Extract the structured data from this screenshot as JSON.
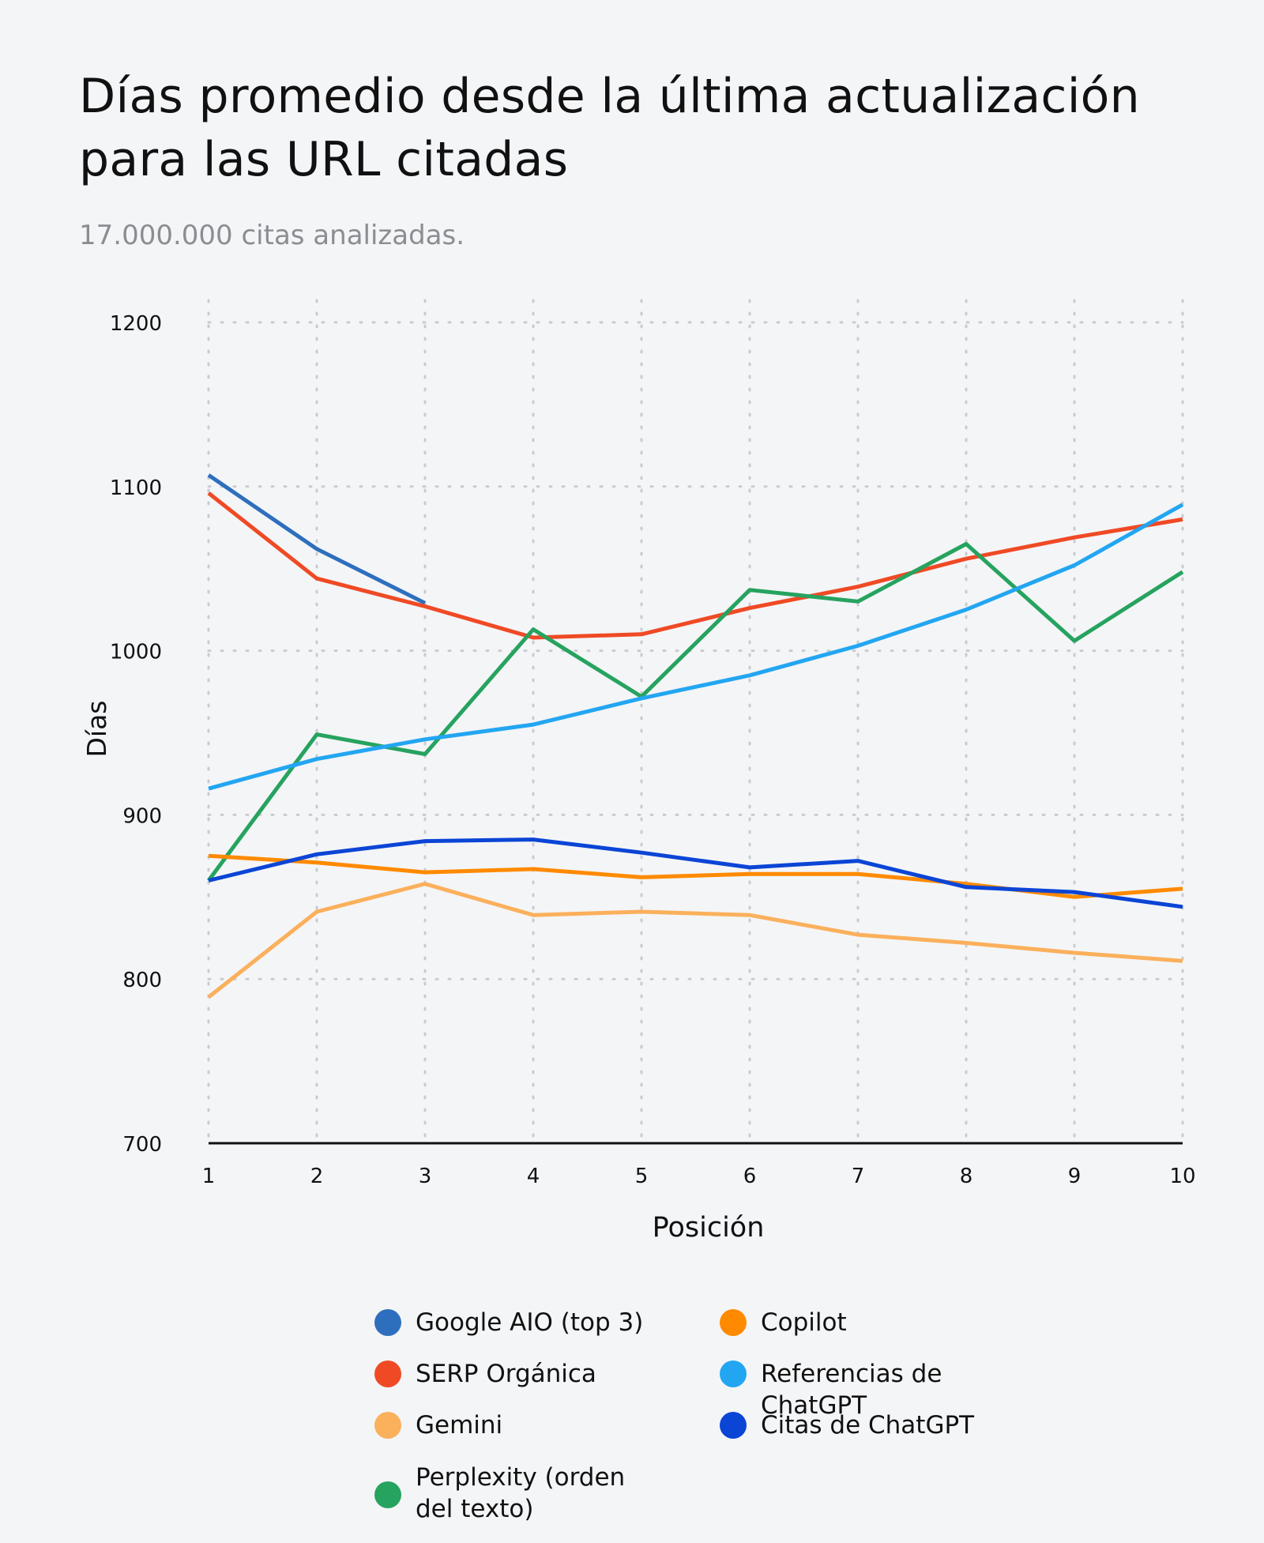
{
  "title": "Días promedio desde la última actualización para las URL citadas",
  "subtitle": "17.000.000 citas analizadas.",
  "chart_data": {
    "type": "line",
    "title": "Días promedio desde la última actualización para las URL citadas",
    "subtitle": "17.000.000 citas analizadas.",
    "xlabel": "Posición",
    "ylabel": "Días",
    "x": [
      1,
      2,
      3,
      4,
      5,
      6,
      7,
      8,
      9,
      10
    ],
    "ylim": [
      700,
      1200
    ],
    "yticks": [
      700,
      800,
      900,
      1000,
      1100,
      1200
    ],
    "grid": true,
    "legend_position": "bottom",
    "series": [
      {
        "name": "Google AIO (top 3)",
        "color": "#2e6fbd",
        "values": [
          1107,
          1062,
          1029,
          null,
          null,
          null,
          null,
          null,
          null,
          null
        ]
      },
      {
        "name": "SERP Orgánica",
        "color": "#ef4a25",
        "values": [
          1096,
          1044,
          1027,
          1008,
          1010,
          1026,
          1039,
          1056,
          1069,
          1080
        ]
      },
      {
        "name": "Gemini",
        "color": "#fbb05c",
        "values": [
          789,
          841,
          858,
          839,
          841,
          839,
          827,
          822,
          816,
          811
        ]
      },
      {
        "name": "Perplexity (orden del texto)",
        "color": "#26a35f",
        "values": [
          860,
          949,
          937,
          1013,
          972,
          1037,
          1030,
          1065,
          1006,
          1048
        ]
      },
      {
        "name": "Copilot",
        "color": "#ff8a00",
        "values": [
          875,
          871,
          865,
          867,
          862,
          864,
          864,
          858,
          850,
          855
        ]
      },
      {
        "name": "Referencias de ChatGPT",
        "color": "#23a6f2",
        "values": [
          916,
          934,
          946,
          955,
          971,
          985,
          1003,
          1025,
          1052,
          1089
        ]
      },
      {
        "name": "Citas de ChatGPT",
        "color": "#0b45d6",
        "values": [
          860,
          876,
          884,
          885,
          877,
          868,
          872,
          856,
          853,
          844
        ]
      }
    ]
  }
}
